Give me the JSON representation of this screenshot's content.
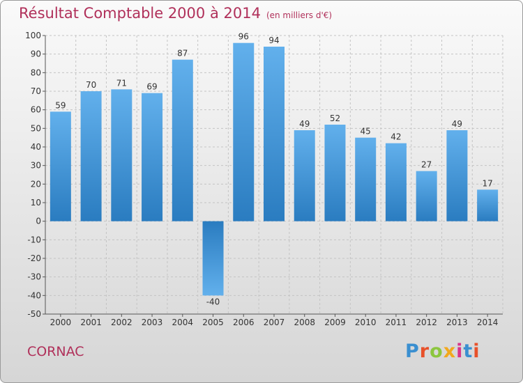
{
  "chart_data": {
    "type": "bar",
    "title": "Résultat Comptable 2000 à 2014",
    "subtitle": "(en milliers d'€)",
    "categories": [
      "2000",
      "2001",
      "2002",
      "2003",
      "2004",
      "2005",
      "2006",
      "2007",
      "2008",
      "2009",
      "2010",
      "2011",
      "2012",
      "2013",
      "2014"
    ],
    "values": [
      59,
      70,
      71,
      69,
      87,
      -40,
      96,
      94,
      49,
      52,
      45,
      42,
      27,
      49,
      17
    ],
    "ylim": [
      -50,
      100
    ],
    "yticks": [
      100,
      90,
      80,
      70,
      60,
      50,
      40,
      30,
      20,
      10,
      0,
      -10,
      -20,
      -30,
      -40,
      -50
    ],
    "grid": true,
    "xlabel": "",
    "ylabel": ""
  },
  "footer": {
    "commune": "CORNAC",
    "brand": "Proxiti"
  },
  "colors": {
    "title": "#b0305a",
    "bar_light": "#62b0ec",
    "bar_dark": "#2a7cc0",
    "brand": [
      "#3a8fd0",
      "#e8512a",
      "#8cc63e",
      "#f2a81d",
      "#d9348a",
      "#3a8fd0",
      "#e8512a"
    ]
  }
}
